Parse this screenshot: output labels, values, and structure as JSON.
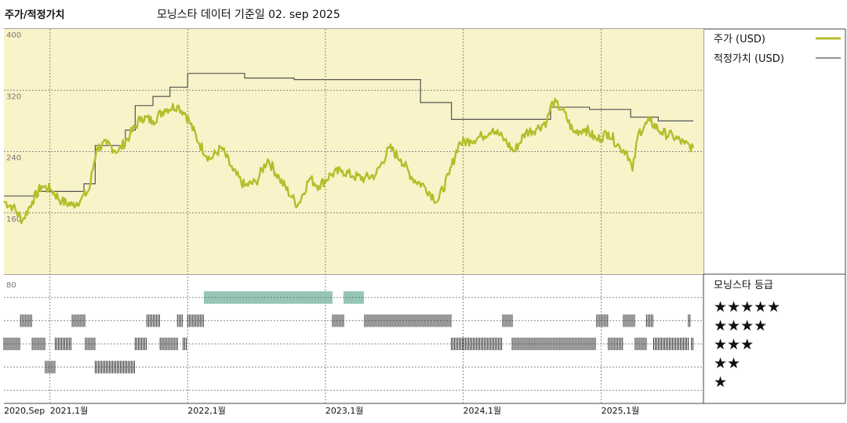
{
  "header": {
    "title": "주가/적정가치",
    "subtitle": "모닝스타 데이터 기준일 02. sep 2025"
  },
  "colors": {
    "price": "#b5bd2a",
    "fair": "#555555",
    "panel_bg": "#f8f3c8",
    "rating_highlight": "#2e8b6f",
    "rating_default": "#333333"
  },
  "chart_data": [
    {
      "type": "line",
      "title": "",
      "x_range": [
        "2020-09-01",
        "2025-09-02"
      ],
      "ylim": [
        80,
        400
      ],
      "yticks": [
        80,
        160,
        240,
        320,
        400
      ],
      "grid": true,
      "legend_position": "top-right",
      "series": [
        {
          "name": "주가 (USD)",
          "key": "price",
          "points": [
            [
              "2020-09-01",
              175
            ],
            [
              "2020-09-25",
              168
            ],
            [
              "2020-10-20",
              150
            ],
            [
              "2020-11-15",
              175
            ],
            [
              "2020-12-10",
              195
            ],
            [
              "2021-01-05",
              190
            ],
            [
              "2021-02-01",
              175
            ],
            [
              "2021-03-01",
              170
            ],
            [
              "2021-03-25",
              178
            ],
            [
              "2021-04-15",
              190
            ],
            [
              "2021-05-05",
              245
            ],
            [
              "2021-06-01",
              250
            ],
            [
              "2021-07-01",
              240
            ],
            [
              "2021-08-01",
              262
            ],
            [
              "2021-09-01",
              285
            ],
            [
              "2021-10-01",
              280
            ],
            [
              "2021-11-01",
              295
            ],
            [
              "2021-12-05",
              300
            ],
            [
              "2021-12-25",
              290
            ],
            [
              "2022-01-05",
              280
            ],
            [
              "2022-02-01",
              250
            ],
            [
              "2022-03-01",
              230
            ],
            [
              "2022-04-01",
              245
            ],
            [
              "2022-05-01",
              215
            ],
            [
              "2022-06-01",
              195
            ],
            [
              "2022-07-01",
              200
            ],
            [
              "2022-08-01",
              230
            ],
            [
              "2022-09-01",
              205
            ],
            [
              "2022-10-05",
              180
            ],
            [
              "2022-10-20",
              170
            ],
            [
              "2022-11-20",
              205
            ],
            [
              "2022-12-15",
              195
            ],
            [
              "2023-01-15",
              210
            ],
            [
              "2023-02-15",
              215
            ],
            [
              "2023-03-15",
              208
            ],
            [
              "2023-04-15",
              205
            ],
            [
              "2023-05-15",
              210
            ],
            [
              "2023-06-20",
              245
            ],
            [
              "2023-07-20",
              230
            ],
            [
              "2023-08-20",
              205
            ],
            [
              "2023-09-20",
              195
            ],
            [
              "2023-10-25",
              175
            ],
            [
              "2023-11-25",
              210
            ],
            [
              "2023-12-20",
              250
            ],
            [
              "2024-01-20",
              255
            ],
            [
              "2024-02-20",
              260
            ],
            [
              "2024-03-20",
              270
            ],
            [
              "2024-04-20",
              255
            ],
            [
              "2024-05-15",
              240
            ],
            [
              "2024-06-15",
              265
            ],
            [
              "2024-07-15",
              270
            ],
            [
              "2024-08-10",
              280
            ],
            [
              "2024-08-25",
              305
            ],
            [
              "2024-09-20",
              295
            ],
            [
              "2024-10-20",
              265
            ],
            [
              "2024-11-20",
              270
            ],
            [
              "2024-12-20",
              255
            ],
            [
              "2025-01-20",
              265
            ],
            [
              "2025-02-20",
              245
            ],
            [
              "2025-03-10",
              240
            ],
            [
              "2025-03-25",
              215
            ],
            [
              "2025-04-10",
              265
            ],
            [
              "2025-05-10",
              280
            ],
            [
              "2025-06-10",
              265
            ],
            [
              "2025-07-10",
              260
            ],
            [
              "2025-08-10",
              250
            ],
            [
              "2025-09-02",
              245
            ]
          ]
        },
        {
          "name": "적정가치 (USD)",
          "key": "fair",
          "points": [
            [
              "2020-09-01",
              182
            ],
            [
              "2020-12-01",
              182
            ],
            [
              "2020-12-01",
              188
            ],
            [
              "2021-04-01",
              188
            ],
            [
              "2021-04-01",
              198
            ],
            [
              "2021-05-01",
              198
            ],
            [
              "2021-05-01",
              248
            ],
            [
              "2021-07-20",
              248
            ],
            [
              "2021-07-20",
              268
            ],
            [
              "2021-08-15",
              268
            ],
            [
              "2021-08-15",
              300
            ],
            [
              "2021-10-01",
              300
            ],
            [
              "2021-10-01",
              312
            ],
            [
              "2021-11-15",
              312
            ],
            [
              "2021-11-15",
              324
            ],
            [
              "2022-01-01",
              324
            ],
            [
              "2022-01-01",
              342
            ],
            [
              "2022-06-01",
              342
            ],
            [
              "2022-06-01",
              336
            ],
            [
              "2022-10-10",
              336
            ],
            [
              "2022-10-10",
              334
            ],
            [
              "2023-09-10",
              334
            ],
            [
              "2023-09-10",
              304
            ],
            [
              "2023-12-01",
              304
            ],
            [
              "2023-12-01",
              282
            ],
            [
              "2024-08-20",
              282
            ],
            [
              "2024-08-20",
              298
            ],
            [
              "2024-12-01",
              298
            ],
            [
              "2024-12-01",
              295
            ],
            [
              "2025-03-20",
              295
            ],
            [
              "2025-03-20",
              285
            ],
            [
              "2025-06-01",
              285
            ],
            [
              "2025-06-01",
              280
            ],
            [
              "2025-09-02",
              280
            ]
          ]
        }
      ]
    },
    {
      "type": "rating",
      "title": "모닝스타 등급",
      "ylim_label": "80",
      "levels": [
        {
          "stars": 5,
          "label": "★★★★★"
        },
        {
          "stars": 4,
          "label": "★★★★"
        },
        {
          "stars": 3,
          "label": "★★★"
        },
        {
          "stars": 2,
          "label": "★★"
        },
        {
          "stars": 1,
          "label": "★"
        }
      ],
      "segments": [
        {
          "start": "2020-09-01",
          "end": "2020-10-15",
          "stars": 3
        },
        {
          "start": "2020-10-15",
          "end": "2020-11-15",
          "stars": 4
        },
        {
          "start": "2020-11-15",
          "end": "2020-12-20",
          "stars": 3
        },
        {
          "start": "2020-12-20",
          "end": "2021-01-15",
          "stars": 2
        },
        {
          "start": "2021-01-15",
          "end": "2021-03-01",
          "stars": 3
        },
        {
          "start": "2021-03-01",
          "end": "2021-04-05",
          "stars": 4
        },
        {
          "start": "2021-04-05",
          "end": "2021-05-01",
          "stars": 3
        },
        {
          "start": "2021-05-01",
          "end": "2021-08-15",
          "stars": 2
        },
        {
          "start": "2021-08-15",
          "end": "2021-09-15",
          "stars": 3
        },
        {
          "start": "2021-09-15",
          "end": "2021-10-20",
          "stars": 4
        },
        {
          "start": "2021-10-20",
          "end": "2021-12-05",
          "stars": 3
        },
        {
          "start": "2021-12-05",
          "end": "2021-12-20",
          "stars": 4
        },
        {
          "start": "2021-12-20",
          "end": "2022-01-01",
          "stars": 3
        },
        {
          "start": "2022-01-01",
          "end": "2022-02-15",
          "stars": 4
        },
        {
          "start": "2022-02-15",
          "end": "2023-01-20",
          "stars": 5
        },
        {
          "start": "2023-01-20",
          "end": "2023-02-20",
          "stars": 4
        },
        {
          "start": "2023-02-20",
          "end": "2023-04-15",
          "stars": 5
        },
        {
          "start": "2023-04-15",
          "end": "2023-12-01",
          "stars": 4
        },
        {
          "start": "2023-12-01",
          "end": "2024-04-15",
          "stars": 3
        },
        {
          "start": "2024-04-15",
          "end": "2024-05-10",
          "stars": 4
        },
        {
          "start": "2024-05-10",
          "end": "2024-12-20",
          "stars": 3
        },
        {
          "start": "2024-12-20",
          "end": "2025-01-20",
          "stars": 4
        },
        {
          "start": "2025-01-20",
          "end": "2025-03-01",
          "stars": 3
        },
        {
          "start": "2025-03-01",
          "end": "2025-04-01",
          "stars": 4
        },
        {
          "start": "2025-04-01",
          "end": "2025-05-01",
          "stars": 3
        },
        {
          "start": "2025-05-01",
          "end": "2025-05-20",
          "stars": 4
        },
        {
          "start": "2025-05-20",
          "end": "2025-08-20",
          "stars": 3
        },
        {
          "start": "2025-08-20",
          "end": "2025-08-28",
          "stars": 4
        },
        {
          "start": "2025-08-28",
          "end": "2025-09-02",
          "stars": 3
        }
      ]
    }
  ],
  "x_axis": {
    "ticks": [
      {
        "date": "2020-09-01",
        "label": "2020,Sep"
      },
      {
        "date": "2021-01-01",
        "label": "2021,1월"
      },
      {
        "date": "2022-01-01",
        "label": "2022,1월"
      },
      {
        "date": "2023-01-01",
        "label": "2023,1월"
      },
      {
        "date": "2024-01-01",
        "label": "2024,1월"
      },
      {
        "date": "2025-01-01",
        "label": "2025,1월"
      }
    ]
  }
}
